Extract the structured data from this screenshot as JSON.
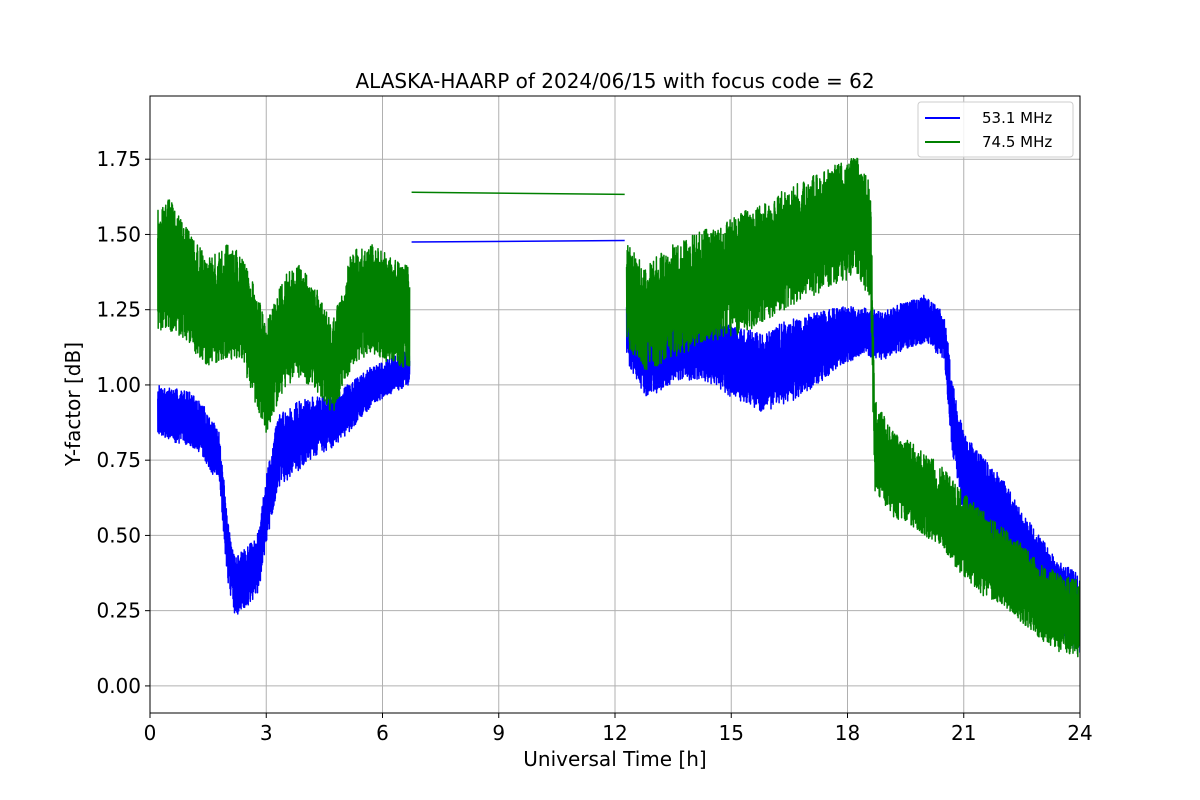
{
  "chart_data": {
    "type": "line",
    "title": "ALASKA-HAARP of 2024/06/15 with focus code = 62",
    "xlabel": "Universal Time [h]",
    "ylabel": "Y-factor [dB]",
    "xlim": [
      0,
      24
    ],
    "ylim": [
      -0.09,
      1.96
    ],
    "xticks": [
      0,
      3,
      6,
      9,
      12,
      15,
      18,
      21,
      24
    ],
    "xtick_labels": [
      "0",
      "3",
      "6",
      "9",
      "12",
      "15",
      "18",
      "21",
      "24"
    ],
    "yticks": [
      0.0,
      0.25,
      0.5,
      0.75,
      1.0,
      1.25,
      1.5,
      1.75
    ],
    "ytick_labels": [
      "0.00",
      "0.25",
      "0.50",
      "0.75",
      "1.00",
      "1.25",
      "1.50",
      "1.75"
    ],
    "grid": true,
    "legend_position": "top-right",
    "series": [
      {
        "name": "53.1 MHz",
        "color": "#0000ff",
        "segments": [
          {
            "x": [
              0.2,
              0.6,
              1.0,
              1.4,
              1.8,
              2.0,
              2.2,
              2.5,
              2.8,
              3.0,
              3.3,
              3.7,
              4.2,
              4.7,
              5.2,
              5.7,
              6.2,
              6.7
            ],
            "y": [
              0.92,
              0.9,
              0.89,
              0.84,
              0.75,
              0.45,
              0.33,
              0.36,
              0.41,
              0.58,
              0.78,
              0.82,
              0.86,
              0.88,
              0.93,
              0.99,
              1.03,
              1.06
            ],
            "amp": [
              0.08,
              0.09,
              0.09,
              0.09,
              0.09,
              0.1,
              0.1,
              0.1,
              0.1,
              0.12,
              0.12,
              0.12,
              0.1,
              0.09,
              0.08,
              0.07,
              0.06,
              0.06
            ]
          },
          {
            "x": [
              6.75,
              12.25
            ],
            "y": [
              1.475,
              1.48
            ],
            "amp": [
              0,
              0
            ]
          },
          {
            "x": [
              12.3,
              12.8,
              13.5,
              14.2,
              15.0,
              15.8,
              16.5,
              17.2,
              17.8,
              18.4,
              18.9,
              19.5,
              20.0,
              20.5,
              20.7,
              21.0,
              21.5,
              22.0,
              22.5,
              23.0,
              23.5,
              24.0
            ],
            "y": [
              1.18,
              1.08,
              1.12,
              1.12,
              1.08,
              1.04,
              1.08,
              1.12,
              1.16,
              1.18,
              1.16,
              1.2,
              1.22,
              1.16,
              0.9,
              0.7,
              0.62,
              0.56,
              0.45,
              0.36,
              0.28,
              0.24
            ],
            "amp": [
              0.1,
              0.13,
              0.11,
              0.1,
              0.12,
              0.13,
              0.14,
              0.12,
              0.1,
              0.08,
              0.08,
              0.08,
              0.08,
              0.08,
              0.12,
              0.14,
              0.14,
              0.13,
              0.13,
              0.13,
              0.13,
              0.13
            ]
          }
        ]
      },
      {
        "name": "74.5 MHz",
        "color": "#008000",
        "segments": [
          {
            "x": [
              0.2,
              0.5,
              1.0,
              1.5,
              2.0,
              2.4,
              2.8,
              3.0,
              3.4,
              3.8,
              4.3,
              4.7,
              5.2,
              5.7,
              6.2,
              6.7
            ],
            "y": [
              1.38,
              1.4,
              1.32,
              1.24,
              1.28,
              1.25,
              1.1,
              1.02,
              1.16,
              1.22,
              1.15,
              1.05,
              1.25,
              1.3,
              1.25,
              1.22
            ],
            "amp": [
              0.2,
              0.22,
              0.19,
              0.18,
              0.19,
              0.19,
              0.19,
              0.18,
              0.19,
              0.19,
              0.17,
              0.15,
              0.19,
              0.19,
              0.18,
              0.17
            ]
          },
          {
            "x": [
              6.75,
              12.25
            ],
            "y": [
              1.64,
              1.633
            ],
            "amp": [
              0,
              0
            ]
          },
          {
            "x": [
              12.3,
              12.8,
              13.5,
              14.2,
              15.0,
              15.8,
              16.5,
              17.2,
              17.8,
              18.3,
              18.6,
              18.7,
              19.2,
              19.8,
              20.5,
              21.0,
              21.5,
              22.0,
              22.5,
              23.0,
              23.5,
              24.0
            ],
            "y": [
              1.3,
              1.22,
              1.28,
              1.32,
              1.36,
              1.4,
              1.46,
              1.5,
              1.54,
              1.56,
              1.46,
              0.8,
              0.7,
              0.66,
              0.58,
              0.5,
              0.44,
              0.4,
              0.34,
              0.28,
              0.24,
              0.22
            ],
            "amp": [
              0.17,
              0.18,
              0.19,
              0.19,
              0.2,
              0.2,
              0.2,
              0.2,
              0.2,
              0.2,
              0.2,
              0.15,
              0.14,
              0.14,
              0.14,
              0.14,
              0.14,
              0.13,
              0.13,
              0.13,
              0.13,
              0.13
            ]
          }
        ]
      }
    ]
  }
}
